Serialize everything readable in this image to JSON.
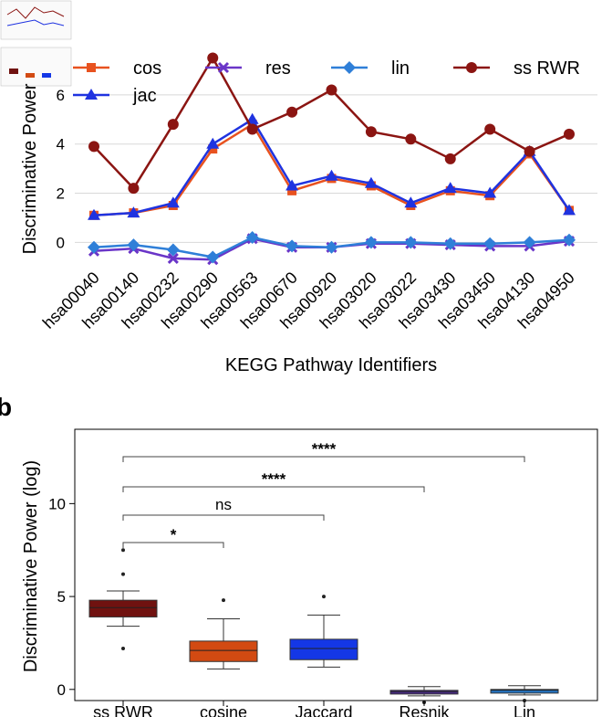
{
  "colors": {
    "cos": "#e8521f",
    "res": "#6a35c8",
    "lin": "#2f7fd8",
    "ssrwr": "#8b1512",
    "jac": "#1f33e0",
    "box_ssrwr": "#701210",
    "box_cosine": "#d24a12",
    "box_jaccard": "#1437e6",
    "box_resnik": "#4a2a8a",
    "box_lin": "#2577c8"
  },
  "chart_data": [
    {
      "type": "line",
      "panel_label": "",
      "title": "",
      "xlabel": "KEGG Pathway Identifiers",
      "ylabel": "Discriminative Power",
      "ylim": [
        -1.1,
        8.0
      ],
      "yticks": [
        "0",
        "2",
        "4",
        "6"
      ],
      "ytick_values": [
        0,
        2,
        4,
        6
      ],
      "grid": true,
      "legend_position": "top",
      "categories": [
        "hsa00040",
        "hsa00140",
        "hsa00232",
        "hsa00290",
        "hsa00563",
        "hsa00670",
        "hsa00920",
        "hsa03020",
        "hsa03022",
        "hsa03430",
        "hsa03450",
        "hsa04130",
        "hsa04950"
      ],
      "series": [
        {
          "name": "cos",
          "marker": "square",
          "values": [
            1.1,
            1.2,
            1.5,
            3.8,
            4.8,
            2.1,
            2.6,
            2.3,
            1.5,
            2.1,
            1.9,
            3.6,
            1.3
          ]
        },
        {
          "name": "res",
          "marker": "x",
          "values": [
            -0.35,
            -0.25,
            -0.65,
            -0.7,
            0.15,
            -0.2,
            -0.2,
            -0.05,
            -0.05,
            -0.1,
            -0.15,
            -0.15,
            0.05
          ]
        },
        {
          "name": "lin",
          "marker": "diamond",
          "values": [
            -0.2,
            -0.1,
            -0.3,
            -0.6,
            0.2,
            -0.15,
            -0.2,
            0.0,
            0.0,
            -0.05,
            -0.05,
            0.0,
            0.1
          ]
        },
        {
          "name": "ss RWR",
          "marker": "circle",
          "values": [
            3.9,
            2.2,
            4.8,
            7.5,
            4.6,
            5.3,
            6.2,
            4.5,
            4.2,
            3.4,
            4.6,
            3.7,
            4.4
          ]
        },
        {
          "name": "jac",
          "marker": "triangle",
          "values": [
            1.1,
            1.2,
            1.6,
            4.0,
            5.0,
            2.3,
            2.7,
            2.4,
            1.6,
            2.2,
            2.0,
            3.7,
            1.3
          ]
        }
      ]
    },
    {
      "type": "box",
      "panel_label": "b",
      "title": "",
      "xlabel": "",
      "ylabel": "Discriminative Power (log)",
      "ylim": [
        -0.6,
        14.0
      ],
      "yticks": [
        "0",
        "5",
        "10"
      ],
      "ytick_values": [
        0,
        5,
        10
      ],
      "grid": false,
      "categories": [
        "ss RWR",
        "cosine",
        "Jaccard",
        "Resnik",
        "Lin"
      ],
      "boxes": [
        {
          "name": "ss RWR",
          "whisker_low": 3.4,
          "q1": 3.9,
          "median": 4.4,
          "q3": 4.8,
          "whisker_high": 5.3,
          "outliers": [
            2.2,
            6.2,
            7.5
          ]
        },
        {
          "name": "cosine",
          "whisker_low": 1.1,
          "q1": 1.5,
          "median": 2.1,
          "q3": 2.6,
          "whisker_high": 3.8,
          "outliers": [
            4.8
          ]
        },
        {
          "name": "Jaccard",
          "whisker_low": 1.2,
          "q1": 1.6,
          "median": 2.2,
          "q3": 2.7,
          "whisker_high": 4.0,
          "outliers": [
            5.0
          ]
        },
        {
          "name": "Resnik",
          "whisker_low": -0.35,
          "q1": -0.25,
          "median": -0.12,
          "q3": -0.05,
          "whisker_high": 0.15,
          "outliers": [
            -0.7
          ]
        },
        {
          "name": "Lin",
          "whisker_low": -0.3,
          "q1": -0.2,
          "median": -0.05,
          "q3": 0.0,
          "whisker_high": 0.2,
          "outliers": [
            -0.6
          ]
        }
      ],
      "significance": [
        {
          "from": "ss RWR",
          "to": "cosine",
          "label": "*"
        },
        {
          "from": "ss RWR",
          "to": "Jaccard",
          "label": "ns"
        },
        {
          "from": "ss RWR",
          "to": "Resnik",
          "label": "****"
        },
        {
          "from": "ss RWR",
          "to": "Lin",
          "label": "****"
        }
      ]
    }
  ]
}
